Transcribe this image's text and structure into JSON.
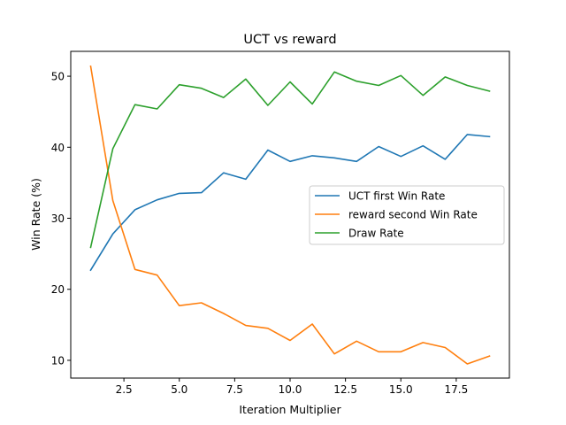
{
  "chart_data": {
    "type": "line",
    "title": "UCT vs reward",
    "xlabel": "Iteration Multiplier",
    "ylabel": "Win Rate (%)",
    "x": [
      1,
      2,
      3,
      4,
      5,
      6,
      7,
      8,
      9,
      10,
      11,
      12,
      13,
      14,
      15,
      16,
      17,
      18,
      19
    ],
    "xlim": [
      0.1,
      19.9
    ],
    "ylim": [
      7.5,
      53.5
    ],
    "xticks": [
      2.5,
      5.0,
      7.5,
      10.0,
      12.5,
      15.0,
      17.5
    ],
    "xtick_labels": [
      "2.5",
      "5.0",
      "7.5",
      "10.0",
      "12.5",
      "15.0",
      "17.5"
    ],
    "yticks": [
      10,
      20,
      30,
      40,
      50
    ],
    "ytick_labels": [
      "10",
      "20",
      "30",
      "40",
      "50"
    ],
    "grid": false,
    "legend_position": "center-right",
    "series": [
      {
        "name": "UCT first Win Rate",
        "color": "#1f77b4",
        "values": [
          22.7,
          27.8,
          31.2,
          32.6,
          33.5,
          33.6,
          36.4,
          35.5,
          39.6,
          38.0,
          38.8,
          38.5,
          38.0,
          40.1,
          38.7,
          40.2,
          38.3,
          41.8,
          41.5
        ]
      },
      {
        "name": "reward second Win Rate",
        "color": "#ff7f0e",
        "values": [
          51.4,
          32.5,
          22.8,
          22.0,
          17.7,
          18.1,
          16.6,
          14.9,
          14.5,
          12.8,
          15.1,
          10.9,
          12.7,
          11.2,
          11.2,
          12.5,
          11.8,
          9.5,
          10.6
        ]
      },
      {
        "name": "Draw Rate",
        "color": "#2ca02c",
        "values": [
          25.9,
          39.8,
          46.0,
          45.4,
          48.8,
          48.3,
          47.0,
          49.6,
          45.9,
          49.2,
          46.1,
          50.6,
          49.3,
          48.7,
          50.1,
          47.3,
          49.9,
          48.7,
          47.9
        ]
      }
    ]
  }
}
